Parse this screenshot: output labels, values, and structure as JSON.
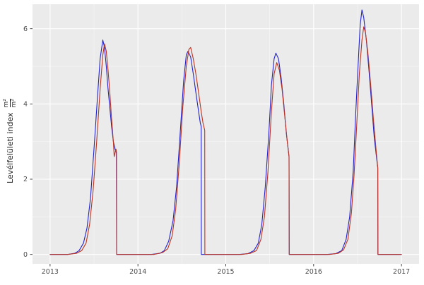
{
  "chart_data": {
    "type": "line",
    "title": "",
    "xlabel": "",
    "ylabel": "Levélfelületi index",
    "ylabel_unit": {
      "numerator": "m²",
      "denominator": "m²"
    },
    "x_ticks": [
      2013,
      2014,
      2015,
      2016,
      2017
    ],
    "x_tick_labels": [
      "2013",
      "2014",
      "2015",
      "2016",
      "2017"
    ],
    "y_ticks": [
      0,
      2,
      4,
      6
    ],
    "y_tick_labels": [
      "0",
      "2",
      "4",
      "6"
    ],
    "x_minor": [
      2013.5,
      2014.5,
      2015.5,
      2016.5
    ],
    "y_minor": [
      1,
      3,
      5
    ],
    "xlim": [
      2012.8,
      2017.2
    ],
    "ylim": [
      -0.25,
      6.65
    ],
    "grid": true,
    "legend_position": "none",
    "panel_bg": "#EBEBEB",
    "grid_major_color": "#FFFFFF",
    "grid_minor_color": "#F6F6F6",
    "tick_color": "#333333",
    "tick_label_color": "#4D4D4D",
    "series": [
      {
        "name": "series-blue",
        "color": "#2222CC",
        "points": [
          [
            2013.0,
            0
          ],
          [
            2013.1,
            0
          ],
          [
            2013.2,
            0
          ],
          [
            2013.28,
            0.03
          ],
          [
            2013.33,
            0.1
          ],
          [
            2013.38,
            0.3
          ],
          [
            2013.42,
            0.7
          ],
          [
            2013.46,
            1.5
          ],
          [
            2013.5,
            2.8
          ],
          [
            2013.54,
            4.2
          ],
          [
            2013.57,
            5.2
          ],
          [
            2013.6,
            5.7
          ],
          [
            2013.62,
            5.5
          ],
          [
            2013.64,
            5.0
          ],
          [
            2013.66,
            4.4
          ],
          [
            2013.68,
            3.9
          ],
          [
            2013.7,
            3.4
          ],
          [
            2013.72,
            3.0
          ],
          [
            2013.74,
            2.8
          ],
          [
            2013.755,
            2.7
          ],
          [
            2013.757,
            0
          ],
          [
            2013.85,
            0
          ],
          [
            2013.95,
            0
          ],
          [
            2014.05,
            0
          ],
          [
            2014.15,
            0
          ],
          [
            2014.25,
            0.03
          ],
          [
            2014.3,
            0.1
          ],
          [
            2014.35,
            0.35
          ],
          [
            2014.4,
            0.9
          ],
          [
            2014.44,
            1.8
          ],
          [
            2014.48,
            3.2
          ],
          [
            2014.52,
            4.6
          ],
          [
            2014.55,
            5.3
          ],
          [
            2014.57,
            5.4
          ],
          [
            2014.6,
            5.25
          ],
          [
            2014.63,
            4.8
          ],
          [
            2014.66,
            4.3
          ],
          [
            2014.69,
            3.8
          ],
          [
            2014.71,
            3.5
          ],
          [
            2014.72,
            3.4
          ],
          [
            2014.722,
            0
          ],
          [
            2014.85,
            0
          ],
          [
            2014.95,
            0
          ],
          [
            2015.05,
            0
          ],
          [
            2015.15,
            0
          ],
          [
            2015.25,
            0.02
          ],
          [
            2015.32,
            0.1
          ],
          [
            2015.37,
            0.3
          ],
          [
            2015.41,
            0.8
          ],
          [
            2015.45,
            1.8
          ],
          [
            2015.49,
            3.2
          ],
          [
            2015.52,
            4.5
          ],
          [
            2015.55,
            5.2
          ],
          [
            2015.57,
            5.35
          ],
          [
            2015.6,
            5.2
          ],
          [
            2015.63,
            4.7
          ],
          [
            2015.66,
            4.0
          ],
          [
            2015.69,
            3.2
          ],
          [
            2015.71,
            2.8
          ],
          [
            2015.72,
            2.6
          ],
          [
            2015.722,
            0
          ],
          [
            2015.85,
            0
          ],
          [
            2015.95,
            0
          ],
          [
            2016.05,
            0
          ],
          [
            2016.15,
            0
          ],
          [
            2016.25,
            0.02
          ],
          [
            2016.32,
            0.1
          ],
          [
            2016.37,
            0.4
          ],
          [
            2016.41,
            1.0
          ],
          [
            2016.45,
            2.2
          ],
          [
            2016.48,
            3.8
          ],
          [
            2016.51,
            5.2
          ],
          [
            2016.53,
            6.1
          ],
          [
            2016.55,
            6.5
          ],
          [
            2016.57,
            6.3
          ],
          [
            2016.6,
            5.7
          ],
          [
            2016.63,
            4.9
          ],
          [
            2016.66,
            4.0
          ],
          [
            2016.69,
            3.1
          ],
          [
            2016.72,
            2.5
          ],
          [
            2016.73,
            2.3
          ],
          [
            2016.732,
            0
          ],
          [
            2016.85,
            0
          ],
          [
            2016.95,
            0
          ],
          [
            2017.0,
            0
          ]
        ]
      },
      {
        "name": "series-red",
        "color": "#BB3322",
        "points": [
          [
            2013.0,
            0
          ],
          [
            2013.1,
            0
          ],
          [
            2013.2,
            0
          ],
          [
            2013.3,
            0.03
          ],
          [
            2013.36,
            0.1
          ],
          [
            2013.41,
            0.3
          ],
          [
            2013.45,
            0.8
          ],
          [
            2013.49,
            1.7
          ],
          [
            2013.53,
            3.0
          ],
          [
            2013.57,
            4.4
          ],
          [
            2013.6,
            5.3
          ],
          [
            2013.62,
            5.6
          ],
          [
            2013.64,
            5.4
          ],
          [
            2013.66,
            4.9
          ],
          [
            2013.68,
            4.3
          ],
          [
            2013.7,
            3.6
          ],
          [
            2013.72,
            3.0
          ],
          [
            2013.73,
            2.6
          ],
          [
            2013.75,
            2.8
          ],
          [
            2013.757,
            2.7
          ],
          [
            2013.758,
            0
          ],
          [
            2013.85,
            0
          ],
          [
            2013.95,
            0
          ],
          [
            2014.05,
            0
          ],
          [
            2014.18,
            0
          ],
          [
            2014.28,
            0.05
          ],
          [
            2014.34,
            0.15
          ],
          [
            2014.39,
            0.5
          ],
          [
            2014.43,
            1.2
          ],
          [
            2014.47,
            2.4
          ],
          [
            2014.51,
            3.9
          ],
          [
            2014.55,
            5.0
          ],
          [
            2014.58,
            5.45
          ],
          [
            2014.6,
            5.5
          ],
          [
            2014.63,
            5.2
          ],
          [
            2014.66,
            4.8
          ],
          [
            2014.69,
            4.3
          ],
          [
            2014.72,
            3.8
          ],
          [
            2014.74,
            3.5
          ],
          [
            2014.76,
            3.3
          ],
          [
            2014.762,
            0
          ],
          [
            2014.85,
            0
          ],
          [
            2014.95,
            0
          ],
          [
            2015.05,
            0
          ],
          [
            2015.18,
            0
          ],
          [
            2015.28,
            0.03
          ],
          [
            2015.35,
            0.1
          ],
          [
            2015.4,
            0.4
          ],
          [
            2015.44,
            1.0
          ],
          [
            2015.48,
            2.2
          ],
          [
            2015.52,
            3.8
          ],
          [
            2015.55,
            4.8
          ],
          [
            2015.58,
            5.1
          ],
          [
            2015.61,
            4.9
          ],
          [
            2015.64,
            4.4
          ],
          [
            2015.67,
            3.7
          ],
          [
            2015.7,
            3.0
          ],
          [
            2015.72,
            2.6
          ],
          [
            2015.722,
            0
          ],
          [
            2015.85,
            0
          ],
          [
            2015.95,
            0
          ],
          [
            2016.05,
            0
          ],
          [
            2016.18,
            0
          ],
          [
            2016.28,
            0.03
          ],
          [
            2016.34,
            0.12
          ],
          [
            2016.39,
            0.4
          ],
          [
            2016.43,
            1.1
          ],
          [
            2016.46,
            2.1
          ],
          [
            2016.49,
            3.4
          ],
          [
            2016.52,
            4.8
          ],
          [
            2016.55,
            5.7
          ],
          [
            2016.57,
            6.05
          ],
          [
            2016.59,
            5.9
          ],
          [
            2016.62,
            5.3
          ],
          [
            2016.65,
            4.5
          ],
          [
            2016.68,
            3.6
          ],
          [
            2016.71,
            2.8
          ],
          [
            2016.73,
            2.3
          ],
          [
            2016.732,
            0
          ],
          [
            2016.85,
            0
          ],
          [
            2016.95,
            0
          ],
          [
            2017.0,
            0
          ]
        ]
      }
    ]
  }
}
